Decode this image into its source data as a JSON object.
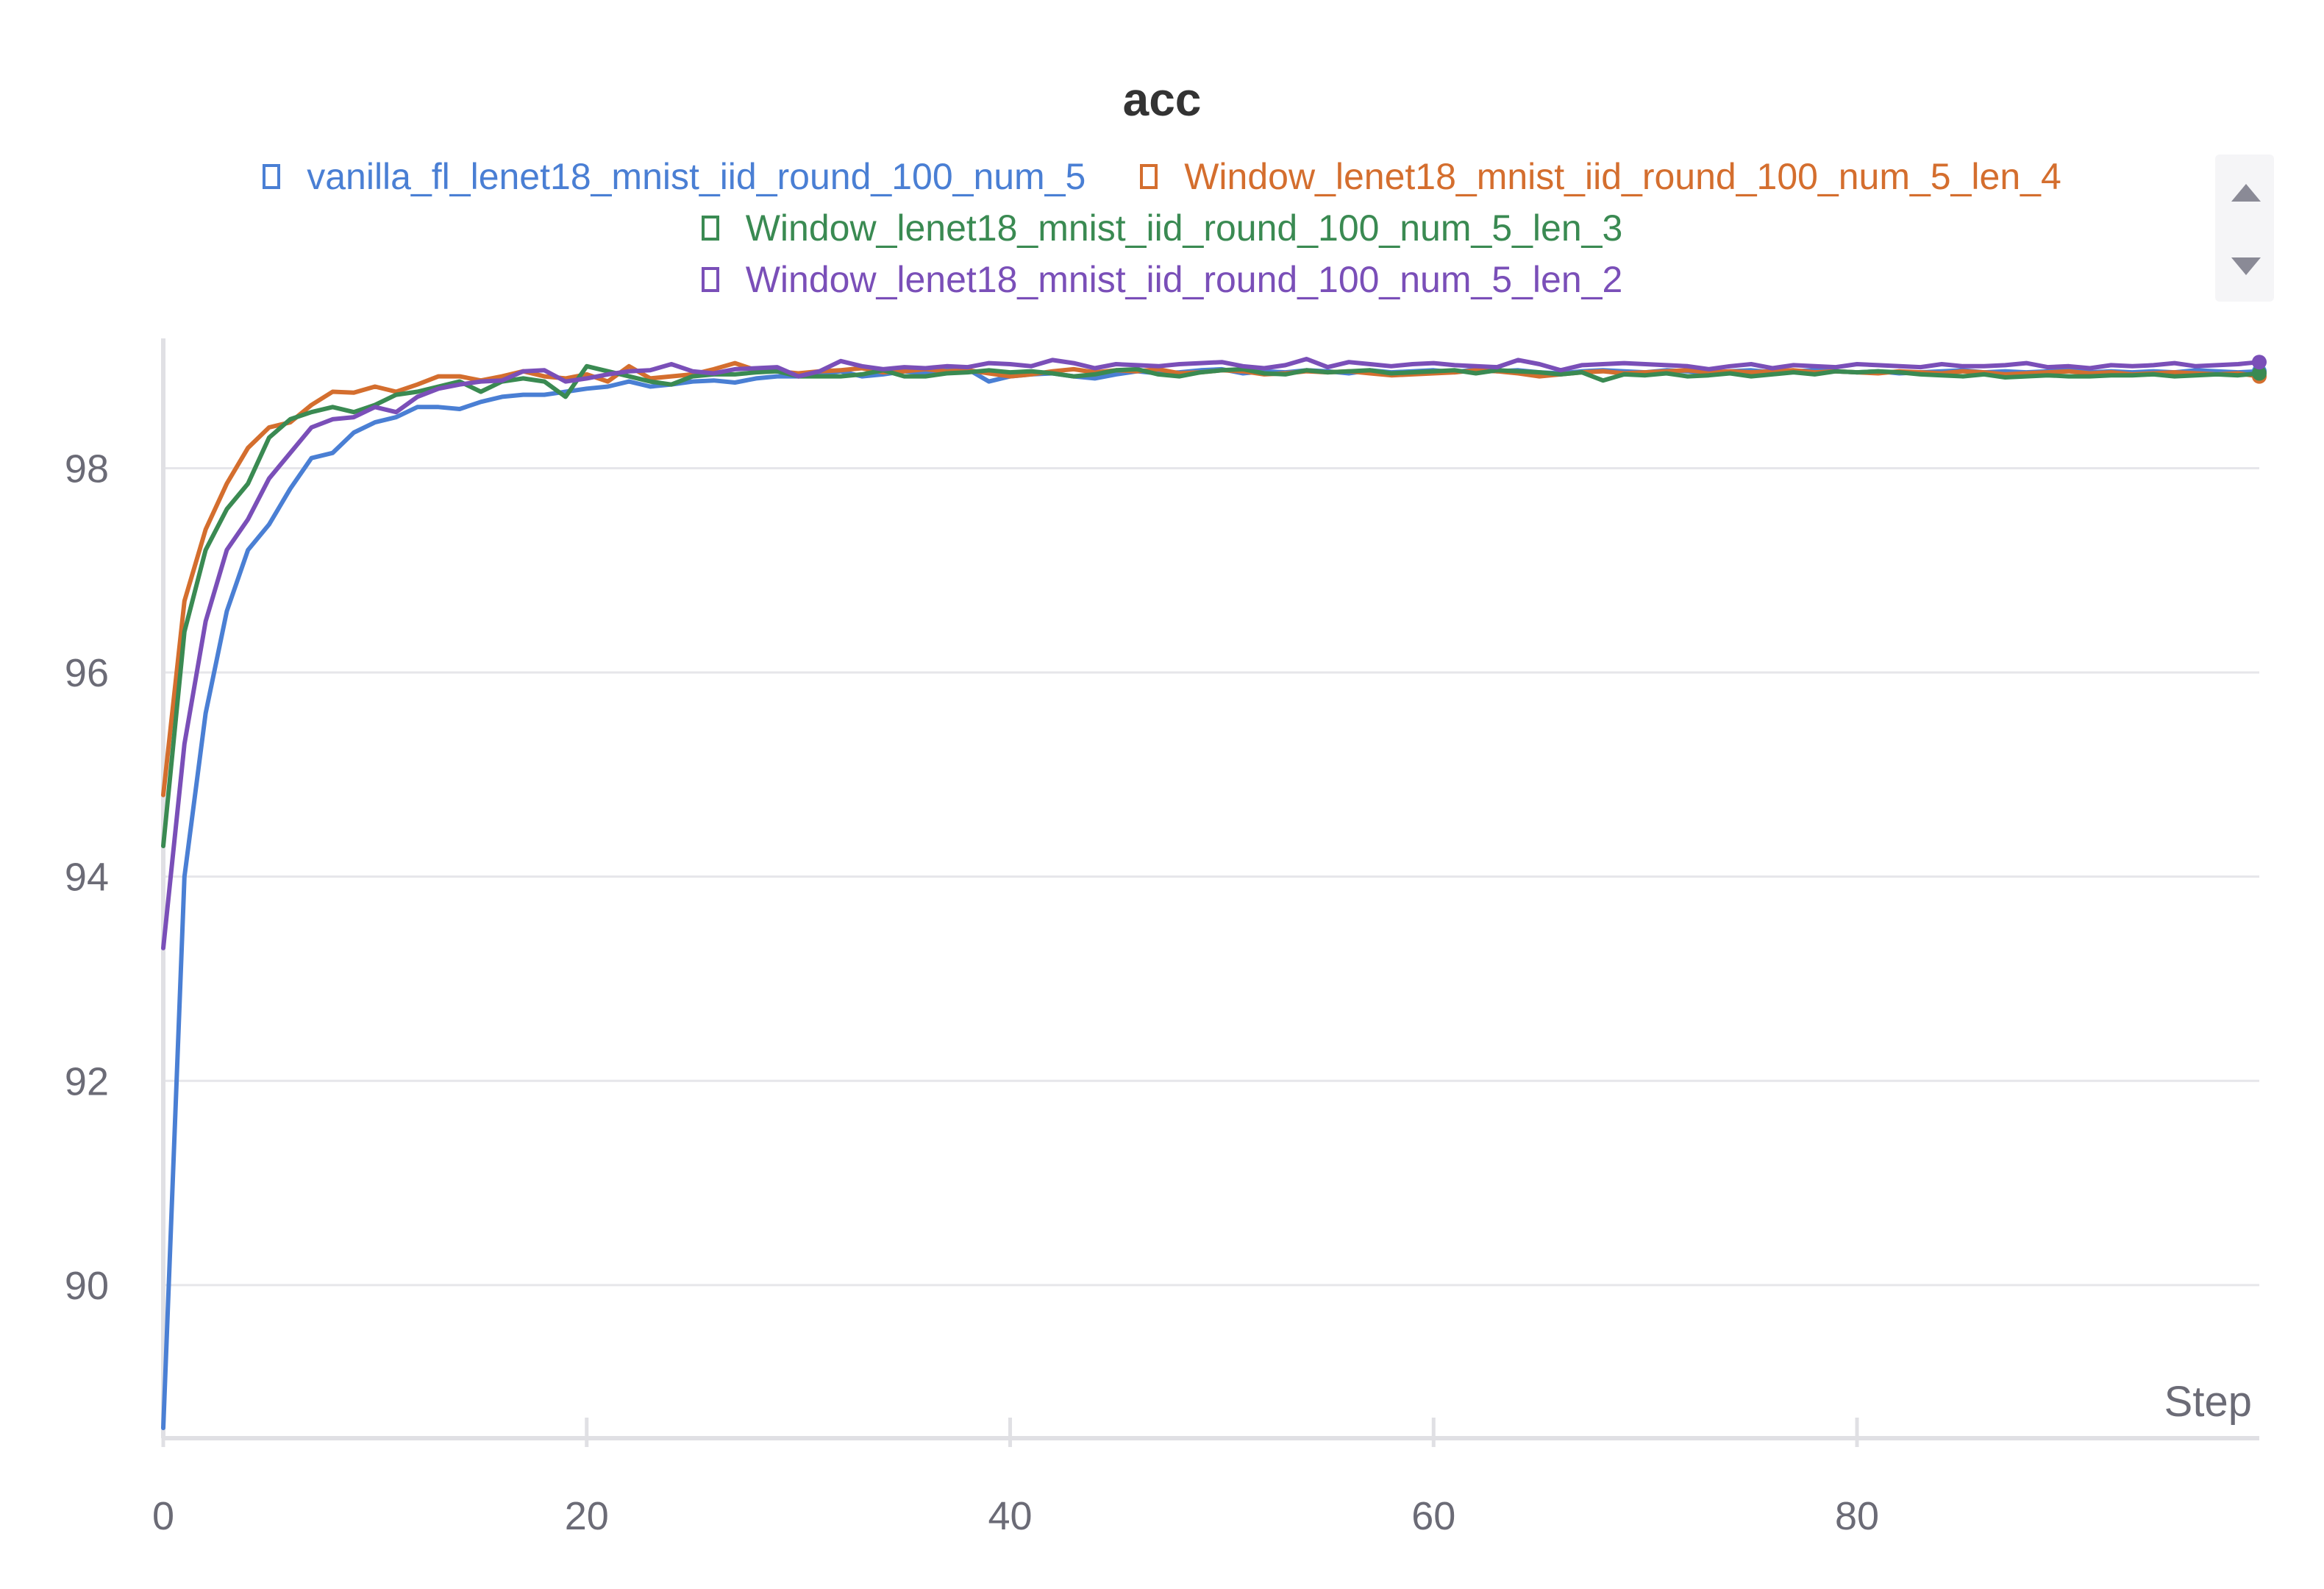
{
  "chart_data": {
    "type": "line",
    "title": "acc",
    "xlabel": "Step",
    "ylabel": "",
    "xlim": [
      0,
      99
    ],
    "ylim": [
      88.5,
      99.2
    ],
    "xticks": [
      0,
      20,
      40,
      60,
      80
    ],
    "yticks": [
      90,
      92,
      94,
      96,
      98
    ],
    "xtick_labels": [
      "0",
      "20",
      "40",
      "60",
      "80"
    ],
    "ytick_labels": [
      "90",
      "92",
      "94",
      "96",
      "98"
    ],
    "grid": true,
    "legend_position": "top",
    "series": [
      {
        "name": "vanilla_fl_lenet18_mnist_iid_round_100_num_5",
        "color": "#4a7fd4",
        "x_start": 0,
        "values": [
          88.6,
          94.0,
          95.6,
          96.6,
          97.2,
          97.45,
          97.8,
          98.1,
          98.15,
          98.35,
          98.45,
          98.5,
          98.6,
          98.6,
          98.58,
          98.65,
          98.7,
          98.72,
          98.72,
          98.75,
          98.78,
          98.8,
          98.85,
          98.8,
          98.82,
          98.85,
          98.86,
          98.84,
          98.88,
          98.9,
          98.9,
          98.92,
          98.95,
          98.9,
          98.92,
          98.95,
          98.93,
          98.96,
          98.97,
          98.85,
          98.9,
          98.92,
          98.93,
          98.9,
          98.88,
          98.92,
          98.95,
          98.93,
          98.94,
          98.96,
          98.97,
          98.93,
          98.95,
          98.94,
          98.96,
          98.95,
          98.93,
          98.96,
          98.94,
          98.95,
          98.96,
          98.94,
          98.97,
          98.95,
          98.96,
          98.94,
          98.93,
          98.95,
          98.96,
          98.95,
          98.94,
          98.96,
          98.95,
          98.93,
          98.95,
          98.96,
          98.94,
          98.95,
          98.96,
          98.95,
          98.94,
          98.95,
          98.93,
          98.94,
          98.95,
          98.96,
          98.94,
          98.95,
          98.94,
          98.95,
          98.96,
          98.94,
          98.95,
          98.94,
          98.95,
          98.94,
          98.96,
          98.95,
          98.94,
          98.95
        ]
      },
      {
        "name": "Window_lenet18_mnist_iid_round_100_num_5_len_4",
        "color": "#d46e2e",
        "x_start": 0,
        "values": [
          94.8,
          96.7,
          97.4,
          97.85,
          98.2,
          98.4,
          98.45,
          98.62,
          98.75,
          98.74,
          98.8,
          98.75,
          98.82,
          98.9,
          98.9,
          98.86,
          98.9,
          98.95,
          98.9,
          98.88,
          98.92,
          98.85,
          99.0,
          98.88,
          98.9,
          98.92,
          98.97,
          99.03,
          98.96,
          98.95,
          98.93,
          98.95,
          98.96,
          98.98,
          98.94,
          98.95,
          98.97,
          98.95,
          98.96,
          98.93,
          98.9,
          98.92,
          98.95,
          98.97,
          98.94,
          98.96,
          98.95,
          98.97,
          98.93,
          98.94,
          98.96,
          98.95,
          98.92,
          98.93,
          98.95,
          98.94,
          98.95,
          98.93,
          98.91,
          98.92,
          98.93,
          98.94,
          98.96,
          98.95,
          98.93,
          98.9,
          98.92,
          98.94,
          98.95,
          98.93,
          98.94,
          98.95,
          98.96,
          98.94,
          98.95,
          98.94,
          98.95,
          98.96,
          98.94,
          98.95,
          98.94,
          98.93,
          98.95,
          98.94,
          98.93,
          98.95,
          98.94,
          98.92,
          98.93,
          98.94,
          98.95,
          98.93,
          98.94,
          98.92,
          98.93,
          98.94,
          98.93,
          98.92,
          98.93,
          98.9
        ]
      },
      {
        "name": "Window_lenet18_mnist_iid_round_100_num_5_len_3",
        "color": "#3a8a52",
        "x_start": 0,
        "values": [
          94.3,
          96.4,
          97.2,
          97.6,
          97.85,
          98.3,
          98.48,
          98.55,
          98.6,
          98.55,
          98.62,
          98.72,
          98.75,
          98.8,
          98.85,
          98.75,
          98.85,
          98.88,
          98.85,
          98.7,
          99.0,
          98.95,
          98.9,
          98.85,
          98.82,
          98.9,
          98.92,
          98.92,
          98.94,
          98.95,
          98.9,
          98.9,
          98.9,
          98.92,
          98.96,
          98.9,
          98.9,
          98.93,
          98.94,
          98.96,
          98.94,
          98.95,
          98.93,
          98.9,
          98.92,
          98.96,
          98.97,
          98.92,
          98.9,
          98.94,
          98.96,
          98.97,
          98.93,
          98.92,
          98.96,
          98.94,
          98.95,
          98.96,
          98.93,
          98.94,
          98.95,
          98.96,
          98.93,
          98.96,
          98.95,
          98.94,
          98.92,
          98.94,
          98.86,
          98.92,
          98.91,
          98.93,
          98.9,
          98.91,
          98.93,
          98.9,
          98.92,
          98.94,
          98.92,
          98.95,
          98.94,
          98.95,
          98.94,
          98.92,
          98.91,
          98.9,
          98.92,
          98.89,
          98.9,
          98.91,
          98.9,
          98.9,
          98.91,
          98.91,
          98.92,
          98.9,
          98.91,
          98.92,
          98.91,
          98.93
        ]
      },
      {
        "name": "Window_lenet18_mnist_iid_round_100_num_5_len_2",
        "color": "#7a4fb8",
        "x_start": 0,
        "values": [
          93.3,
          95.3,
          96.5,
          97.2,
          97.5,
          97.9,
          98.15,
          98.4,
          98.48,
          98.5,
          98.6,
          98.55,
          98.7,
          98.78,
          98.82,
          98.85,
          98.86,
          98.95,
          98.96,
          98.85,
          98.88,
          98.92,
          98.95,
          98.96,
          99.02,
          98.95,
          98.93,
          98.97,
          98.98,
          98.99,
          98.9,
          98.95,
          99.05,
          99.0,
          98.97,
          98.99,
          98.98,
          99.0,
          98.99,
          99.03,
          99.02,
          99.0,
          99.06,
          99.03,
          98.98,
          99.02,
          99.01,
          99.0,
          99.02,
          99.03,
          99.04,
          99.0,
          98.98,
          99.01,
          99.07,
          98.99,
          99.04,
          99.02,
          99.0,
          99.02,
          99.03,
          99.01,
          99.0,
          98.99,
          99.06,
          99.02,
          98.96,
          99.01,
          99.02,
          99.03,
          99.02,
          99.01,
          99.0,
          98.97,
          99.0,
          99.02,
          98.98,
          99.01,
          99.0,
          98.99,
          99.02,
          99.01,
          99.0,
          98.99,
          99.02,
          99.0,
          99.0,
          99.01,
          99.03,
          98.99,
          99.0,
          98.98,
          99.01,
          99.0,
          99.01,
          99.03,
          99.0,
          99.01,
          99.02,
          99.04
        ]
      }
    ]
  },
  "legend": {
    "items": [
      {
        "label": "vanilla_fl_lenet18_mnist_iid_round_100_num_5",
        "color": "#4a7fd4"
      },
      {
        "label": "Window_lenet18_mnist_iid_round_100_num_5_len_4",
        "color": "#d46e2e"
      },
      {
        "label": "Window_lenet18_mnist_iid_round_100_num_5_len_3",
        "color": "#3a8a52"
      },
      {
        "label": "Window_lenet18_mnist_iid_round_100_num_5_len_2",
        "color": "#7a4fb8"
      }
    ]
  }
}
